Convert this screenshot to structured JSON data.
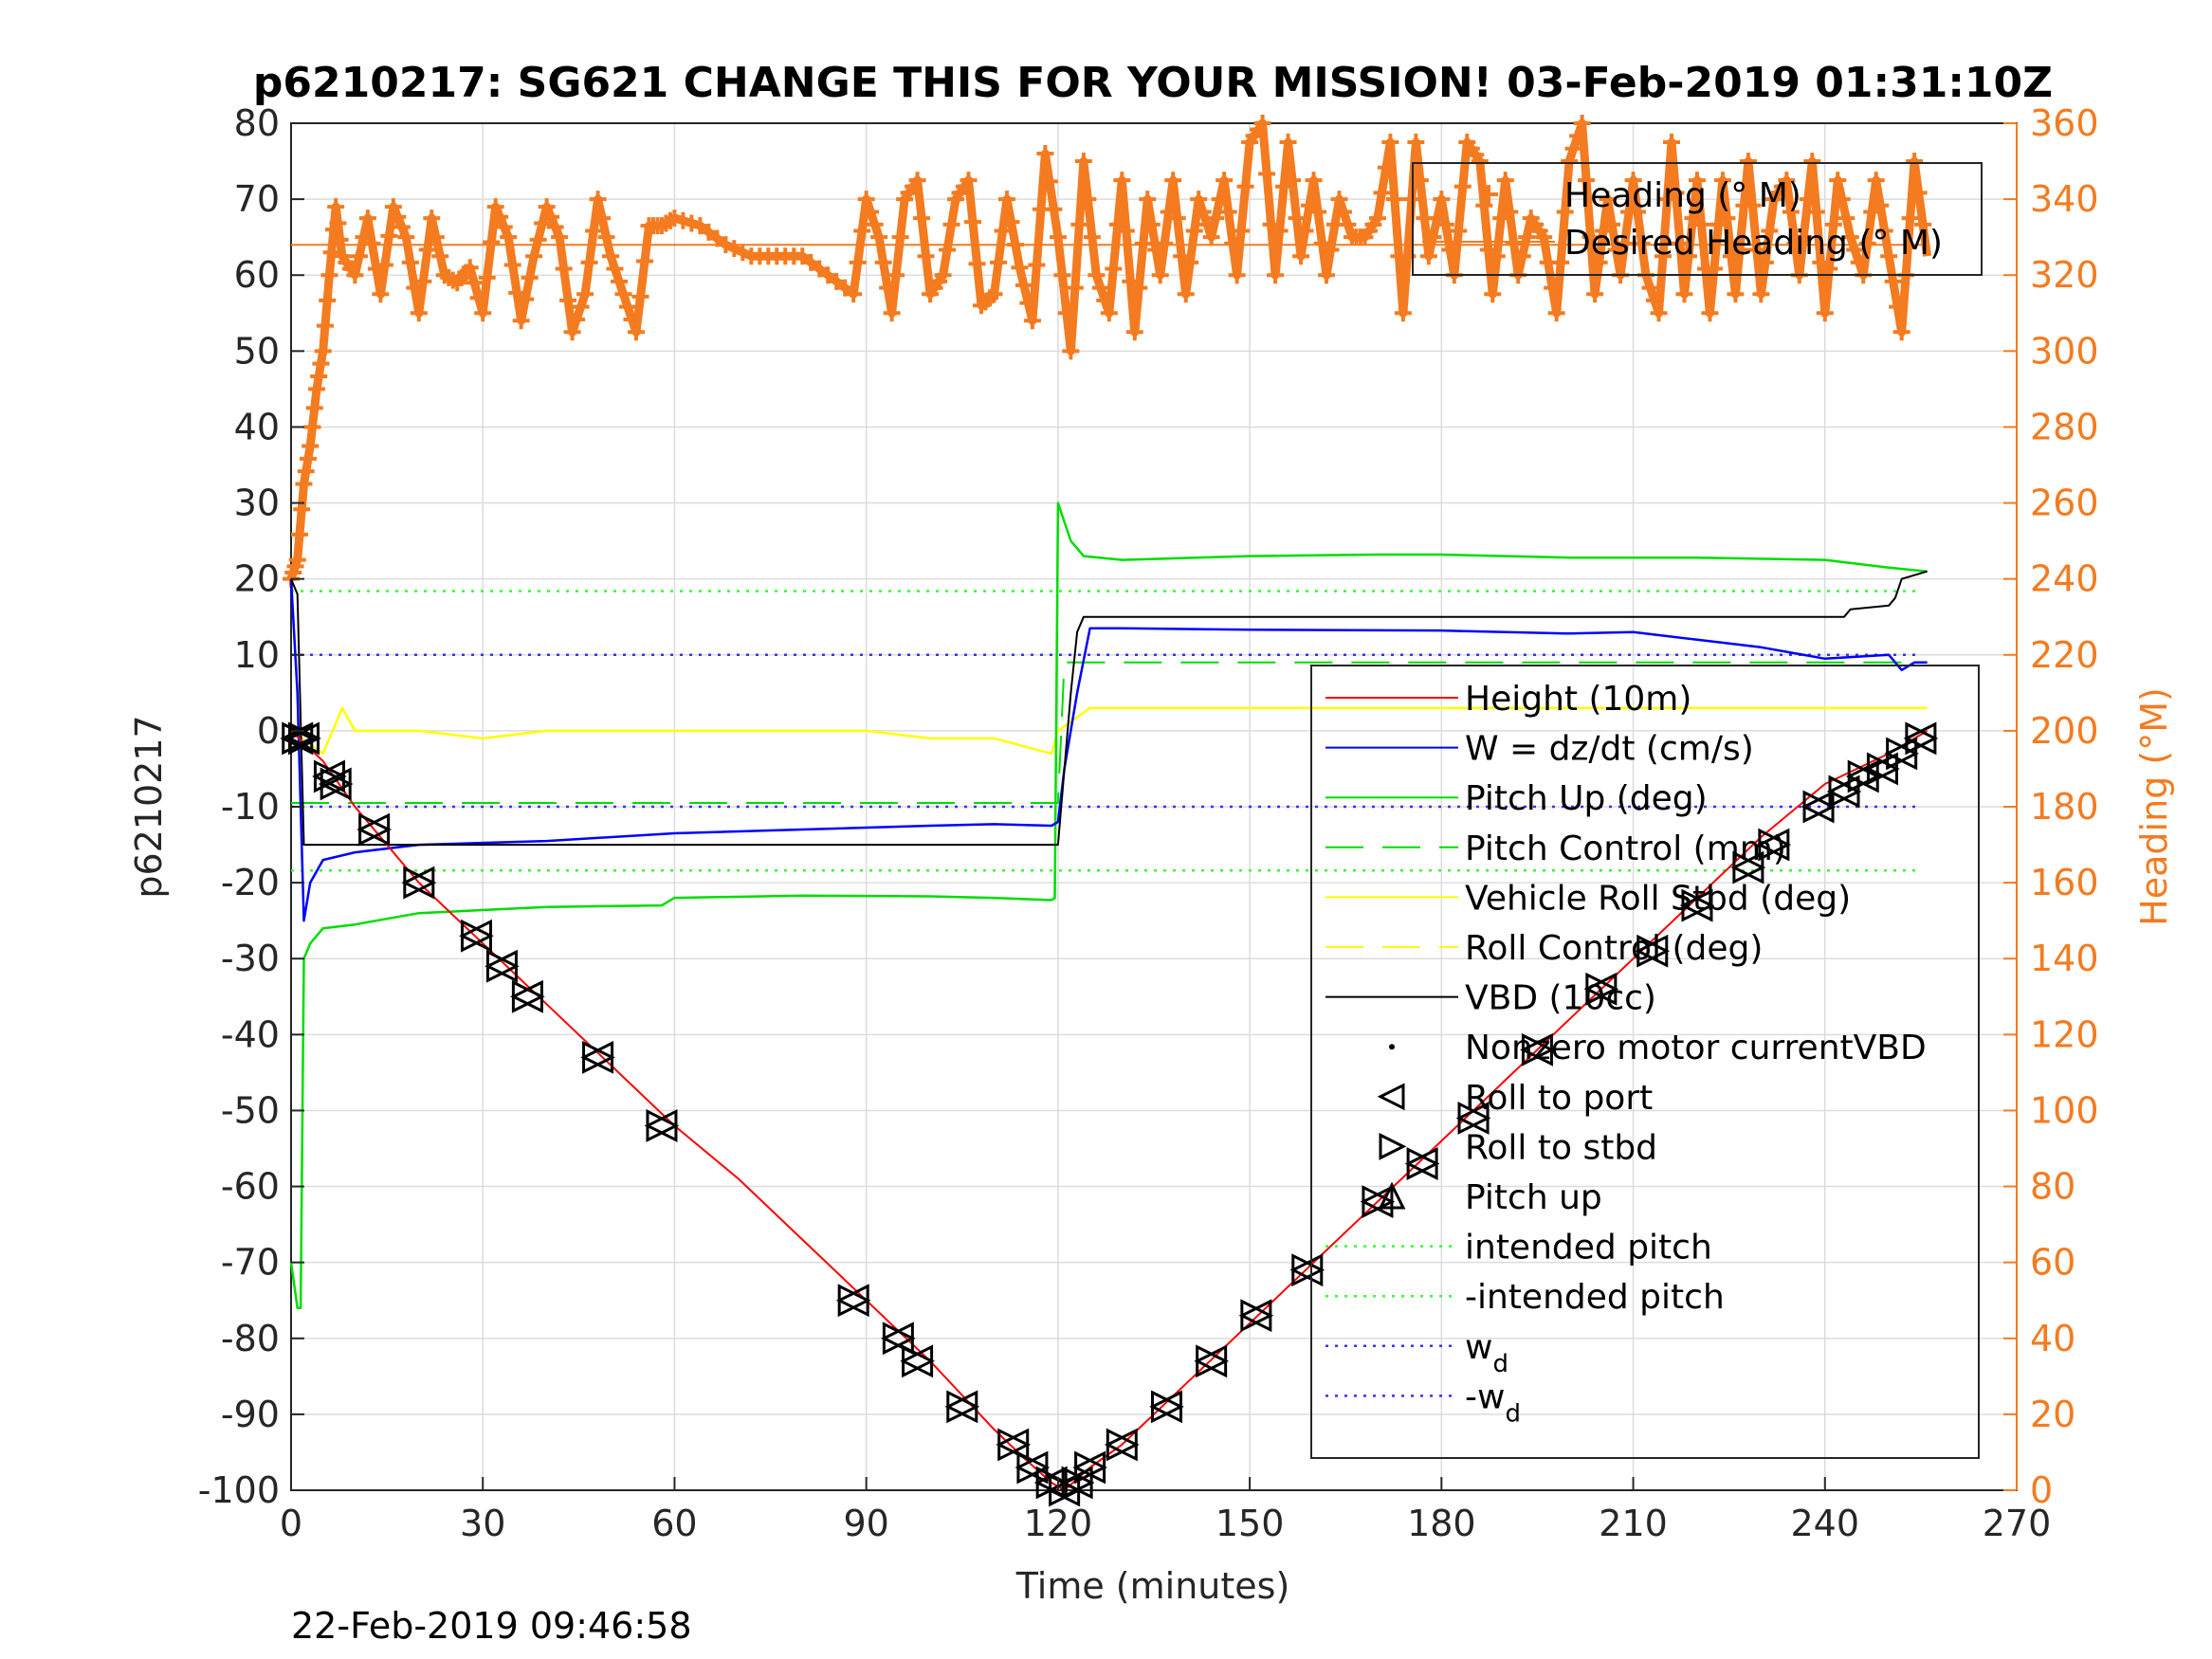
{
  "chart_data": {
    "type": "line",
    "title": "p6210217: SG621 CHANGE THIS FOR YOUR MISSION! 03-Feb-2019 01:31:10Z",
    "xlabel": "Time (minutes)",
    "ylabel": "p6210217",
    "y2label": "Heading (°M)",
    "xlim": [
      0,
      270
    ],
    "ylim": [
      -100,
      80
    ],
    "y2lim": [
      0,
      360
    ],
    "xticks": [
      "0",
      "30",
      "60",
      "90",
      "120",
      "150",
      "180",
      "210",
      "240",
      "270"
    ],
    "yticks": [
      "80",
      "70",
      "60",
      "50",
      "40",
      "30",
      "20",
      "10",
      "0",
      "-10",
      "-20",
      "-30",
      "-40",
      "-50",
      "-60",
      "-70",
      "-80",
      "-90",
      "-100"
    ],
    "y2ticks": [
      "360",
      "340",
      "320",
      "300",
      "280",
      "260",
      "240",
      "220",
      "200",
      "180",
      "160",
      "140",
      "120",
      "100",
      "80",
      "60",
      "40",
      "20",
      "0"
    ],
    "grid": true,
    "footer": "22-Feb-2019 09:46:58",
    "colors": {
      "height": "#ff0000",
      "w": "#0000ff",
      "pitch": "#00dd00",
      "roll": "#ffff00",
      "vbd": "#000000",
      "heading": "#f47b20",
      "markers": "#000000"
    },
    "legend_left": {
      "placement": "right",
      "entries": [
        {
          "label": "Height (10m)",
          "style": "red-line"
        },
        {
          "label": "W = dz/dt (cm/s)",
          "style": "blue-line"
        },
        {
          "label": "Pitch Up (deg)",
          "style": "green-line"
        },
        {
          "label": "Pitch Control (mm)",
          "style": "green-dash"
        },
        {
          "label": "Vehicle Roll Stbd (deg)",
          "style": "yellow-line"
        },
        {
          "label": "Roll Control (deg)",
          "style": "yellow-dash"
        },
        {
          "label": "VBD (10cc)",
          "style": "black-line"
        },
        {
          "label": "Nonzero motor currentVBD",
          "style": "dot"
        },
        {
          "label": "Roll to port",
          "style": "tri-left"
        },
        {
          "label": "Roll to stbd",
          "style": "tri-right"
        },
        {
          "label": "Pitch up",
          "style": "tri-up"
        },
        {
          "label": "intended pitch",
          "style": "green-dot"
        },
        {
          "label": "-intended pitch",
          "style": "green-dot"
        },
        {
          "label": "w",
          "sub": "d",
          "style": "blue-dot"
        },
        {
          "label": "-w",
          "sub": "d",
          "style": "blue-dot"
        }
      ]
    },
    "legend_right": {
      "placement": "top-right",
      "entries": [
        {
          "label": "Heading (° M)",
          "style": "heading-plus"
        },
        {
          "label": "Desired Heading (° M)",
          "style": "heading-line"
        }
      ]
    },
    "series": [
      {
        "name": "Height (10m)",
        "x": [
          0,
          5,
          10,
          20,
          30,
          40,
          50,
          60,
          70,
          80,
          90,
          100,
          110,
          115,
          119,
          121,
          125,
          130,
          140,
          150,
          160,
          170,
          180,
          190,
          200,
          210,
          220,
          230,
          240,
          250,
          256
        ],
        "y": [
          0,
          -4,
          -10,
          -20,
          -28,
          -36,
          -44,
          -52,
          -59,
          -67,
          -75,
          -83,
          -92,
          -96,
          -99,
          -100,
          -97,
          -94,
          -86,
          -78,
          -70,
          -62,
          -54,
          -46,
          -38,
          -30,
          -22,
          -14,
          -7,
          -3,
          0
        ]
      },
      {
        "name": "W = dz/dt (cm/s)",
        "x": [
          0,
          1,
          2,
          3,
          5,
          10,
          20,
          40,
          60,
          80,
          100,
          110,
          119,
          120,
          121,
          123,
          125,
          130,
          150,
          180,
          200,
          210,
          220,
          230,
          240,
          250,
          252,
          254,
          256
        ],
        "y": [
          20,
          5,
          -25,
          -20,
          -17,
          -16,
          -15,
          -14.5,
          -13.5,
          -13,
          -12.5,
          -12.3,
          -12.5,
          -12,
          -5,
          5,
          13.5,
          13.5,
          13.3,
          13.2,
          12.8,
          13,
          12,
          11,
          9.5,
          10,
          8,
          9,
          9
        ]
      },
      {
        "name": "Pitch Up (deg)",
        "x": [
          0,
          1,
          1.5,
          2,
          3,
          5,
          10,
          20,
          40,
          58,
          60,
          80,
          100,
          110,
          119,
          119.5,
          120,
          122,
          124,
          130,
          150,
          170,
          180,
          200,
          220,
          240,
          250,
          256
        ],
        "y": [
          -70,
          -76,
          -76,
          -30,
          -28,
          -26,
          -25.5,
          -24,
          -23.2,
          -23,
          -22,
          -21.7,
          -21.8,
          -22,
          -22.3,
          -22,
          30,
          25,
          23,
          22.5,
          23,
          23.2,
          23.2,
          22.8,
          22.8,
          22.5,
          21.5,
          21
        ]
      },
      {
        "name": "Pitch Control (mm)",
        "x": [
          0,
          120,
          121,
          256
        ],
        "y": [
          -9.5,
          -9.5,
          9,
          9
        ]
      },
      {
        "name": "Vehicle Roll Stbd (deg)",
        "x": [
          0,
          5,
          8,
          10,
          20,
          30,
          40,
          50,
          60,
          70,
          80,
          90,
          100,
          110,
          119,
          120,
          125,
          130,
          150,
          170,
          180,
          200,
          210,
          220,
          240,
          250,
          256
        ],
        "y": [
          0,
          -3,
          3,
          0,
          0,
          -1,
          0,
          0,
          0,
          0,
          0,
          0,
          -1,
          -1,
          -3,
          0,
          3,
          3,
          3,
          3,
          3,
          3,
          3,
          3,
          3,
          3,
          3
        ]
      },
      {
        "name": "VBD (10cc)",
        "x": [
          0,
          1,
          2,
          119,
          120,
          122,
          123,
          124,
          200,
          240,
          243,
          244,
          250,
          251,
          252,
          256
        ],
        "y": [
          20,
          18,
          -15,
          -15,
          -15,
          5,
          13,
          15,
          15,
          15,
          15,
          16,
          16.5,
          17.5,
          20,
          21
        ]
      },
      {
        "name": "Heading (° M)",
        "x": [
          0,
          1,
          2,
          3,
          4,
          5,
          6,
          7,
          8,
          10,
          12,
          14,
          16,
          18,
          20,
          22,
          24,
          26,
          28,
          30,
          32,
          34,
          36,
          38,
          40,
          42,
          44,
          46,
          48,
          50,
          52,
          54,
          56,
          58,
          60,
          64,
          68,
          72,
          76,
          80,
          84,
          88,
          90,
          92,
          94,
          96,
          98,
          100,
          102,
          104,
          106,
          108,
          110,
          112,
          114,
          116,
          118,
          120,
          122,
          124,
          126,
          128,
          130,
          132,
          134,
          136,
          138,
          140,
          142,
          144,
          146,
          148,
          150,
          152,
          154,
          156,
          158,
          160,
          162,
          164,
          166,
          168,
          170,
          172,
          174,
          176,
          178,
          180,
          182,
          184,
          186,
          188,
          190,
          192,
          194,
          196,
          198,
          200,
          202,
          204,
          206,
          208,
          210,
          212,
          214,
          216,
          218,
          220,
          222,
          224,
          226,
          228,
          230,
          232,
          234,
          236,
          238,
          240,
          242,
          244,
          246,
          248,
          250,
          252,
          254,
          256
        ],
        "y": [
          240,
          245,
          265,
          275,
          290,
          300,
          320,
          338,
          325,
          320,
          335,
          315,
          338,
          330,
          310,
          335,
          320,
          318,
          322,
          310,
          338,
          330,
          308,
          325,
          338,
          330,
          305,
          315,
          340,
          325,
          315,
          305,
          333,
          333,
          335,
          333,
          328,
          325,
          325,
          325,
          320,
          315,
          340,
          330,
          310,
          340,
          345,
          315,
          320,
          340,
          345,
          312,
          315,
          340,
          322,
          308,
          352,
          330,
          300,
          350,
          320,
          310,
          345,
          305,
          340,
          320,
          345,
          315,
          340,
          330,
          345,
          320,
          355,
          360,
          320,
          355,
          325,
          345,
          320,
          340,
          330,
          330,
          335,
          355,
          310,
          355,
          325,
          340,
          320,
          355,
          350,
          315,
          345,
          320,
          335,
          330,
          310,
          350,
          360,
          315,
          340,
          320,
          345,
          320,
          310,
          355,
          315,
          345,
          310,
          345,
          315,
          350,
          315,
          340,
          345,
          320,
          350,
          310,
          345,
          330,
          320,
          345,
          325,
          305,
          350,
          325
        ]
      },
      {
        "name": "Desired Heading (° M)",
        "x": [
          0,
          256
        ],
        "y": [
          328,
          328
        ]
      }
    ],
    "reference_lines": [
      {
        "label": "intended pitch",
        "y": 18.4
      },
      {
        "label": "-intended pitch",
        "y": -18.4
      },
      {
        "label": "w",
        "sub": "d",
        "y": 10
      },
      {
        "label": "-w",
        "sub": "d",
        "y": -10
      }
    ],
    "markers": [
      {
        "x": 1,
        "y": -1
      },
      {
        "x": 2,
        "y": -1
      },
      {
        "x": 6,
        "y": -6
      },
      {
        "x": 7,
        "y": -7
      },
      {
        "x": 13,
        "y": -13
      },
      {
        "x": 20,
        "y": -20
      },
      {
        "x": 29,
        "y": -27
      },
      {
        "x": 33,
        "y": -31
      },
      {
        "x": 37,
        "y": -35
      },
      {
        "x": 48,
        "y": -43
      },
      {
        "x": 58,
        "y": -52
      },
      {
        "x": 88,
        "y": -75
      },
      {
        "x": 95,
        "y": -80
      },
      {
        "x": 98,
        "y": -83
      },
      {
        "x": 105,
        "y": -89
      },
      {
        "x": 113,
        "y": -94
      },
      {
        "x": 116,
        "y": -97
      },
      {
        "x": 119,
        "y": -99
      },
      {
        "x": 121,
        "y": -100
      },
      {
        "x": 123,
        "y": -99
      },
      {
        "x": 125,
        "y": -97
      },
      {
        "x": 130,
        "y": -94
      },
      {
        "x": 137,
        "y": -89
      },
      {
        "x": 144,
        "y": -83
      },
      {
        "x": 151,
        "y": -77
      },
      {
        "x": 159,
        "y": -71
      },
      {
        "x": 170,
        "y": -62
      },
      {
        "x": 177,
        "y": -57
      },
      {
        "x": 185,
        "y": -51
      },
      {
        "x": 195,
        "y": -42
      },
      {
        "x": 205,
        "y": -34
      },
      {
        "x": 213,
        "y": -29
      },
      {
        "x": 220,
        "y": -23
      },
      {
        "x": 228,
        "y": -18
      },
      {
        "x": 232,
        "y": -15
      },
      {
        "x": 239,
        "y": -10
      },
      {
        "x": 243,
        "y": -8
      },
      {
        "x": 246,
        "y": -6
      },
      {
        "x": 249,
        "y": -5
      },
      {
        "x": 252,
        "y": -3
      },
      {
        "x": 255,
        "y": -1
      }
    ]
  }
}
